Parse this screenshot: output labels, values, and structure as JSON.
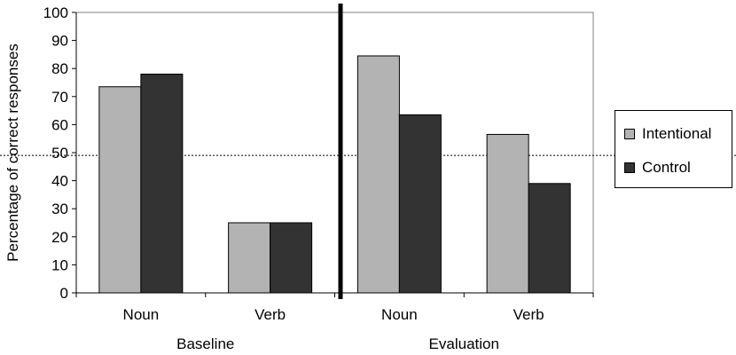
{
  "chart_data": {
    "type": "bar",
    "ylabel": "Percentage of correct responses",
    "ylim": [
      0,
      100
    ],
    "yticks": [
      0,
      10,
      20,
      30,
      40,
      50,
      60,
      70,
      80,
      90,
      100
    ],
    "chance_line": 49,
    "categories": [
      "Noun",
      "Verb",
      "Noun",
      "Verb"
    ],
    "groups": [
      "Baseline",
      "Evaluation"
    ],
    "series": [
      {
        "name": "Intentional",
        "color": "#b3b3b3",
        "values": [
          73.5,
          25,
          84.5,
          56.5
        ]
      },
      {
        "name": "Control",
        "color": "#333333",
        "values": [
          78,
          25,
          63.5,
          39
        ]
      }
    ],
    "legend_position": "right"
  }
}
